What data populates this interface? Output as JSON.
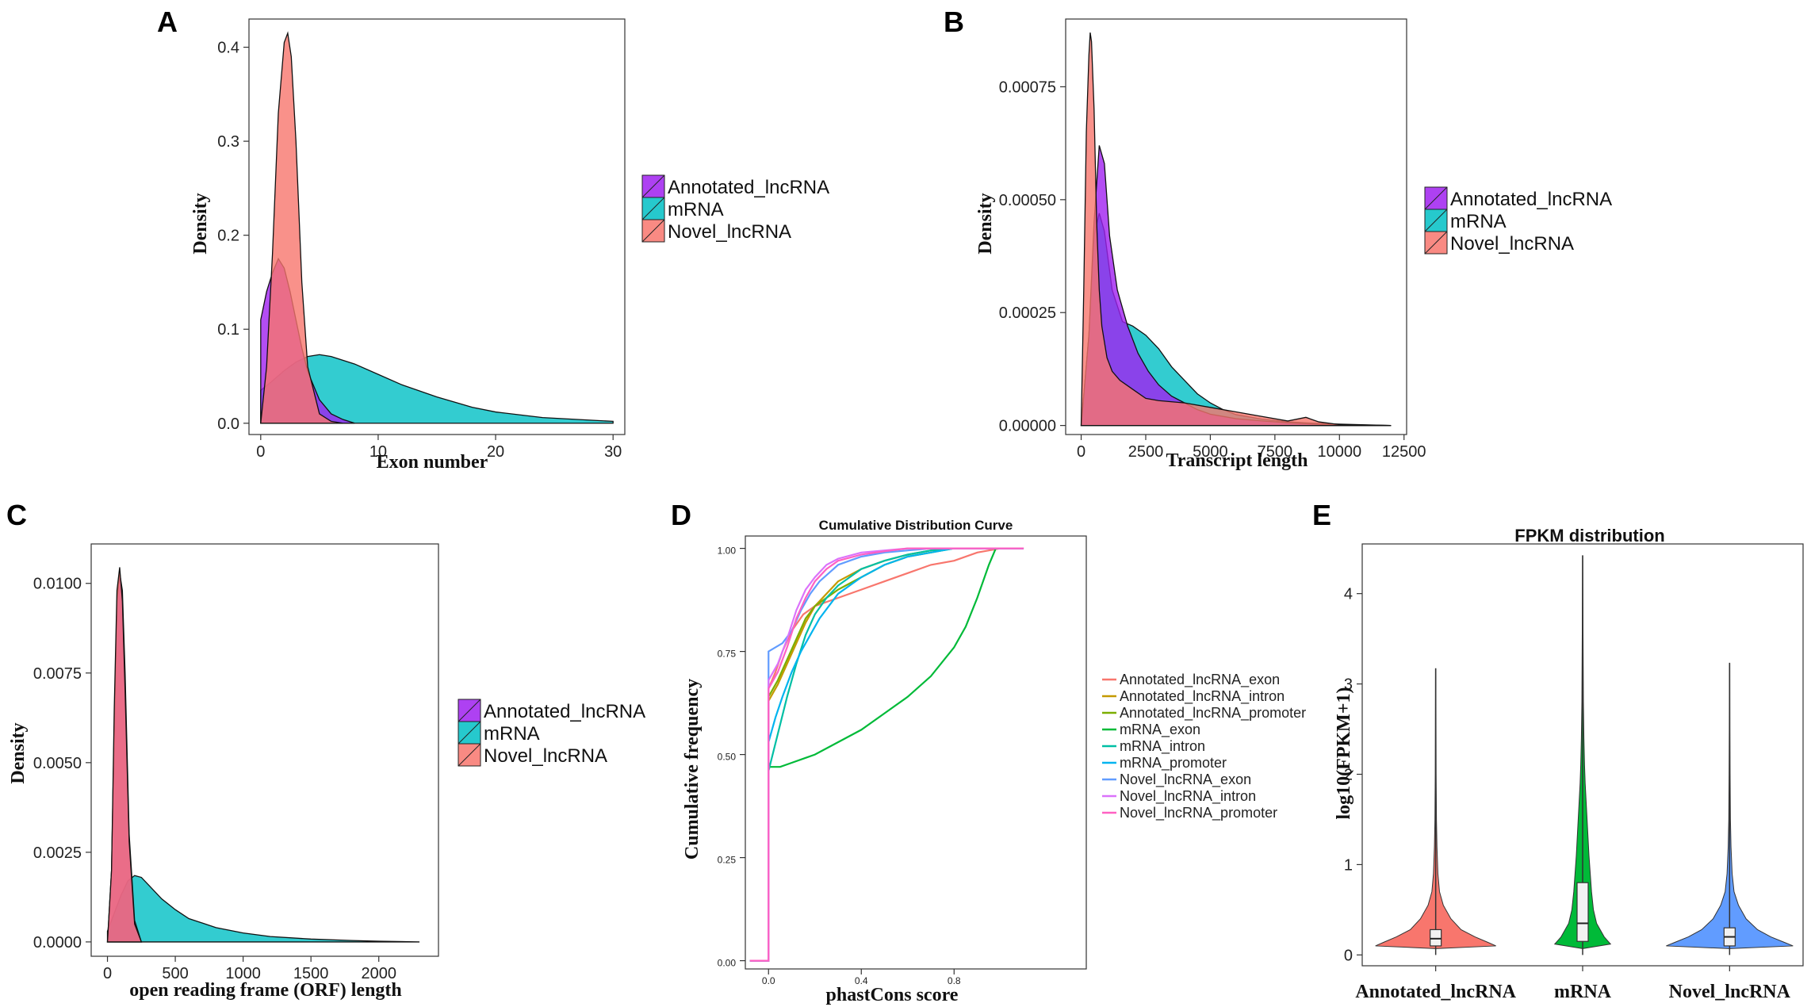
{
  "panels": {
    "A": {
      "label": "A",
      "type": "area",
      "xlabel": "Exon number",
      "ylabel": "Density",
      "xlim": [
        -1,
        31
      ],
      "ylim": [
        -0.012,
        0.43
      ],
      "xticks": [
        0,
        10,
        20,
        30
      ],
      "yticks": [
        0.0,
        0.1,
        0.2,
        0.3,
        0.4
      ],
      "ytick_labels": [
        "0.0",
        "0.1",
        "0.2",
        "0.3",
        "0.4"
      ],
      "legend": [
        "Annotated_lncRNA",
        "mRNA",
        "Novel_lncRNA"
      ],
      "series": [
        {
          "name": "mRNA",
          "color": "#00BFC4",
          "x": [
            0,
            1,
            2,
            3,
            4,
            5,
            6,
            8,
            10,
            12,
            15,
            18,
            20,
            24,
            30
          ],
          "y": [
            0.035,
            0.045,
            0.056,
            0.065,
            0.071,
            0.073,
            0.071,
            0.063,
            0.052,
            0.041,
            0.028,
            0.017,
            0.012,
            0.006,
            0.002
          ]
        },
        {
          "name": "Annotated_lncRNA",
          "color": "#A020F0",
          "x": [
            0,
            0.5,
            1,
            1.5,
            2,
            2.5,
            3,
            3.5,
            4,
            5,
            6,
            7,
            8
          ],
          "y": [
            0.11,
            0.14,
            0.16,
            0.175,
            0.165,
            0.14,
            0.11,
            0.08,
            0.055,
            0.025,
            0.01,
            0.004,
            0.0
          ]
        },
        {
          "name": "Novel_lncRNA",
          "color": "#F8766D",
          "x": [
            0,
            0.5,
            1,
            1.5,
            2,
            2.3,
            2.6,
            3,
            3.5,
            4,
            5,
            6,
            7
          ],
          "y": [
            0.0,
            0.06,
            0.18,
            0.33,
            0.405,
            0.415,
            0.39,
            0.3,
            0.15,
            0.06,
            0.01,
            0.002,
            0.0
          ]
        }
      ]
    },
    "B": {
      "label": "B",
      "type": "area",
      "xlabel": "Transcript length",
      "ylabel": "Density",
      "xlim": [
        -600,
        12600
      ],
      "ylim": [
        -2e-05,
        0.0009
      ],
      "xticks": [
        0,
        2500,
        5000,
        7500,
        10000,
        12500
      ],
      "yticks": [
        0.0,
        0.00025,
        0.0005,
        0.00075
      ],
      "ytick_labels": [
        "0.00000",
        "0.00025",
        "0.00050",
        "0.00075"
      ],
      "legend": [
        "Annotated_lncRNA",
        "mRNA",
        "Novel_lncRNA"
      ],
      "series": [
        {
          "name": "mRNA",
          "color": "#00BFC4",
          "x": [
            0,
            300,
            500,
            700,
            900,
            1200,
            1600,
            2000,
            2500,
            3000,
            3500,
            4000,
            4500,
            5000,
            5500,
            6000,
            7000,
            8000,
            9000,
            10000,
            12000
          ],
          "y": [
            0.0,
            0.0002,
            0.00042,
            0.00047,
            0.00043,
            0.0003,
            0.00023,
            0.00022,
            0.0002,
            0.00017,
            0.00013,
            0.0001,
            7e-05,
            5e-05,
            3.5e-05,
            2.4e-05,
            1.4e-05,
            8e-06,
            5e-06,
            3e-06,
            0.0
          ]
        },
        {
          "name": "Annotated_lncRNA",
          "color": "#A020F0",
          "x": [
            0,
            300,
            500,
            700,
            900,
            1100,
            1400,
            1800,
            2200,
            2600,
            3000,
            3500,
            4000,
            4500,
            5000,
            6000,
            7000,
            8000,
            9000,
            10000,
            12000
          ],
          "y": [
            0.0,
            0.0002,
            0.00045,
            0.00062,
            0.00058,
            0.00042,
            0.0003,
            0.00022,
            0.00016,
            0.00012,
            9e-05,
            6.5e-05,
            5e-05,
            3.5e-05,
            2.5e-05,
            1.5e-05,
            1e-05,
            6e-06,
            3e-06,
            1e-06,
            0.0
          ]
        },
        {
          "name": "Novel_lncRNA",
          "color": "#F8766D",
          "x": [
            0,
            100,
            200,
            300,
            350,
            400,
            500,
            600,
            700,
            800,
            1000,
            1200,
            1500,
            2000,
            2500,
            3000,
            4000,
            5000,
            6000,
            7000,
            8000,
            8700,
            9200,
            10000,
            12000
          ],
          "y": [
            0.0,
            0.0003,
            0.00065,
            0.00082,
            0.00087,
            0.00085,
            0.0007,
            0.00045,
            0.0003,
            0.00022,
            0.00015,
            0.00012,
            0.0001,
            8e-05,
            6e-05,
            5.5e-05,
            5e-05,
            4e-05,
            3e-05,
            2e-05,
            1e-05,
            1.8e-05,
            8e-06,
            2e-06,
            0.0
          ]
        }
      ]
    },
    "C": {
      "label": "C",
      "type": "area",
      "xlabel": "open reading frame (ORF) length",
      "ylabel": "Density",
      "xlim": [
        -120,
        2440
      ],
      "ylim": [
        -0.0004,
        0.0111
      ],
      "xticks": [
        0,
        500,
        1000,
        1500,
        2000
      ],
      "yticks": [
        0.0,
        0.0025,
        0.005,
        0.0075,
        0.01
      ],
      "ytick_labels": [
        "0.0000",
        "0.0025",
        "0.0050",
        "0.0075",
        "0.0100"
      ],
      "legend": [
        "Annotated_lncRNA",
        "mRNA",
        "Novel_lncRNA"
      ],
      "series": [
        {
          "name": "mRNA",
          "color": "#00BFC4",
          "x": [
            0,
            50,
            100,
            150,
            200,
            250,
            300,
            400,
            500,
            600,
            800,
            1000,
            1200,
            1500,
            1800,
            2000,
            2300
          ],
          "y": [
            0.0003,
            0.0008,
            0.0013,
            0.0017,
            0.00185,
            0.0018,
            0.0016,
            0.0012,
            0.0009,
            0.00065,
            0.0004,
            0.00025,
            0.00015,
            8e-05,
            4e-05,
            2e-05,
            0.0
          ]
        },
        {
          "name": "Annotated_lncRNA",
          "color": "#A020F0",
          "x": [
            0,
            30,
            50,
            70,
            90,
            110,
            130,
            160,
            200,
            250
          ],
          "y": [
            0.0,
            0.002,
            0.006,
            0.0095,
            0.0103,
            0.0098,
            0.0075,
            0.003,
            0.0006,
            0.0
          ]
        },
        {
          "name": "Novel_lncRNA",
          "color": "#F8766D",
          "x": [
            0,
            30,
            50,
            70,
            90,
            110,
            130,
            160,
            200,
            250
          ],
          "y": [
            0.0,
            0.002,
            0.0065,
            0.0098,
            0.01045,
            0.0095,
            0.007,
            0.0028,
            0.0005,
            0.0
          ]
        }
      ]
    },
    "D": {
      "label": "D",
      "type": "line",
      "title": "Cumulative Distribution Curve",
      "xlabel": "phastCons score",
      "ylabel": "Cumulative frequency",
      "xlim": [
        -0.1,
        1.37
      ],
      "ylim": [
        -0.02,
        1.03
      ],
      "xticks": [
        0.0,
        0.4,
        0.8
      ],
      "xtick_labels": [
        "0.0",
        "0.4",
        "0.8"
      ],
      "yticks": [
        0.0,
        0.25,
        0.5,
        0.75,
        1.0
      ],
      "ytick_labels": [
        "0.00",
        "0.25",
        "0.50",
        "0.75",
        "1.00"
      ],
      "series": [
        {
          "name": "Annotated_lncRNA_exon",
          "color": "#F8766D",
          "x": [
            -0.08,
            0.0,
            0.0,
            0.03,
            0.06,
            0.1,
            0.15,
            0.2,
            0.3,
            0.4,
            0.5,
            0.6,
            0.7,
            0.8,
            0.9,
            1.0,
            1.1
          ],
          "y": [
            0.0,
            0.0,
            0.66,
            0.7,
            0.75,
            0.8,
            0.84,
            0.86,
            0.88,
            0.9,
            0.92,
            0.94,
            0.96,
            0.97,
            0.99,
            1.0,
            1.0
          ]
        },
        {
          "name": "Annotated_lncRNA_intron",
          "color": "#C49A00",
          "x": [
            -0.08,
            0.0,
            0.0,
            0.04,
            0.08,
            0.12,
            0.16,
            0.2,
            0.3,
            0.4,
            0.5,
            0.6,
            0.7,
            0.8,
            0.9,
            1.0,
            1.1
          ],
          "y": [
            0.0,
            0.0,
            0.63,
            0.67,
            0.72,
            0.77,
            0.82,
            0.86,
            0.92,
            0.95,
            0.97,
            0.985,
            0.995,
            1.0,
            1.0,
            1.0,
            1.0
          ]
        },
        {
          "name": "Annotated_lncRNA_promoter",
          "color": "#7CAE00",
          "x": [
            -0.08,
            0.0,
            0.0,
            0.04,
            0.08,
            0.12,
            0.16,
            0.2,
            0.3,
            0.4,
            0.5,
            0.6,
            0.7,
            0.8,
            0.9,
            1.0,
            1.1
          ],
          "y": [
            0.0,
            0.0,
            0.64,
            0.68,
            0.73,
            0.78,
            0.83,
            0.86,
            0.9,
            0.93,
            0.96,
            0.98,
            0.99,
            1.0,
            1.0,
            1.0,
            1.0
          ]
        },
        {
          "name": "mRNA_exon",
          "color": "#00BA38",
          "x": [
            -0.08,
            0.0,
            0.0,
            0.05,
            0.1,
            0.2,
            0.3,
            0.4,
            0.5,
            0.6,
            0.7,
            0.8,
            0.85,
            0.9,
            0.95,
            0.98,
            1.0,
            1.1
          ],
          "y": [
            0.0,
            0.0,
            0.47,
            0.47,
            0.48,
            0.5,
            0.53,
            0.56,
            0.6,
            0.64,
            0.69,
            0.76,
            0.81,
            0.88,
            0.96,
            1.0,
            1.0,
            1.0
          ]
        },
        {
          "name": "mRNA_intron",
          "color": "#00BFA4",
          "x": [
            -0.08,
            0.0,
            0.0,
            0.04,
            0.08,
            0.12,
            0.16,
            0.2,
            0.25,
            0.3,
            0.4,
            0.5,
            0.6,
            0.7,
            0.8,
            1.0,
            1.1
          ],
          "y": [
            0.0,
            0.0,
            0.46,
            0.55,
            0.64,
            0.72,
            0.79,
            0.84,
            0.88,
            0.91,
            0.95,
            0.97,
            0.985,
            0.995,
            1.0,
            1.0,
            1.0
          ]
        },
        {
          "name": "mRNA_promoter",
          "color": "#00B4EF",
          "x": [
            -0.08,
            0.0,
            0.0,
            0.03,
            0.06,
            0.1,
            0.14,
            0.18,
            0.22,
            0.26,
            0.3,
            0.4,
            0.5,
            0.6,
            0.7,
            0.8,
            1.0,
            1.1
          ],
          "y": [
            0.0,
            0.0,
            0.53,
            0.59,
            0.64,
            0.7,
            0.75,
            0.79,
            0.83,
            0.86,
            0.89,
            0.93,
            0.96,
            0.98,
            0.99,
            1.0,
            1.0,
            1.0
          ]
        },
        {
          "name": "Novel_lncRNA_exon",
          "color": "#619CFF",
          "x": [
            -0.08,
            0.0,
            0.0,
            0.06,
            0.1,
            0.14,
            0.18,
            0.22,
            0.26,
            0.3,
            0.4,
            0.5,
            0.6,
            0.7,
            0.8,
            1.0,
            1.1
          ],
          "y": [
            0.0,
            0.0,
            0.75,
            0.77,
            0.8,
            0.85,
            0.89,
            0.92,
            0.94,
            0.96,
            0.98,
            0.99,
            0.995,
            1.0,
            1.0,
            1.0,
            1.0
          ]
        },
        {
          "name": "Novel_lncRNA_intron",
          "color": "#DB72FB",
          "x": [
            -0.08,
            0.0,
            0.0,
            0.04,
            0.08,
            0.12,
            0.16,
            0.2,
            0.25,
            0.3,
            0.4,
            0.5,
            0.6,
            0.7,
            0.8,
            1.0,
            1.1
          ],
          "y": [
            0.0,
            0.0,
            0.68,
            0.72,
            0.78,
            0.85,
            0.9,
            0.93,
            0.96,
            0.975,
            0.99,
            0.995,
            1.0,
            1.0,
            1.0,
            1.0,
            1.0
          ]
        },
        {
          "name": "Novel_lncRNA_promoter",
          "color": "#FF61C3",
          "x": [
            -0.08,
            0.0,
            0.0,
            0.04,
            0.08,
            0.12,
            0.16,
            0.2,
            0.25,
            0.3,
            0.4,
            0.5,
            0.6,
            0.7,
            0.8,
            1.0,
            1.1
          ],
          "y": [
            0.0,
            0.0,
            0.66,
            0.7,
            0.76,
            0.83,
            0.88,
            0.92,
            0.95,
            0.97,
            0.985,
            0.993,
            1.0,
            1.0,
            1.0,
            1.0,
            1.0
          ]
        }
      ]
    },
    "E": {
      "label": "E",
      "type": "violin",
      "title": "FPKM distribution",
      "ylabel": "log10(FPKM+1)",
      "ylim": [
        -0.12,
        4.55
      ],
      "yticks": [
        0,
        1,
        2,
        3,
        4
      ],
      "categories": [
        "Annotated_lncRNA",
        "mRNA",
        "Novel_lncRNA"
      ],
      "series": [
        {
          "name": "Annotated_lncRNA",
          "color": "#F8766D",
          "max": 3.17,
          "q1": 0.1,
          "median": 0.18,
          "q3": 0.28,
          "whisker_low": 0.0,
          "whisker_high": 1.4,
          "profile_y": [
            0.07,
            0.1,
            0.14,
            0.2,
            0.28,
            0.4,
            0.55,
            0.7,
            0.9,
            1.2,
            1.5,
            2.0,
            2.5,
            3.17
          ],
          "profile_w": [
            0.0,
            0.95,
            0.82,
            0.62,
            0.4,
            0.24,
            0.12,
            0.06,
            0.035,
            0.02,
            0.012,
            0.007,
            0.005,
            0.003
          ]
        },
        {
          "name": "mRNA",
          "color": "#00BA38",
          "max": 4.42,
          "q1": 0.15,
          "median": 0.35,
          "q3": 0.8,
          "whisker_low": 0.0,
          "whisker_high": 1.6,
          "profile_y": [
            0.07,
            0.12,
            0.2,
            0.35,
            0.5,
            0.7,
            0.9,
            1.1,
            1.3,
            1.5,
            1.7,
            1.9,
            2.1,
            2.4,
            2.8,
            3.2,
            3.6,
            4.0,
            4.42
          ],
          "profile_w": [
            0.0,
            0.44,
            0.34,
            0.22,
            0.17,
            0.14,
            0.12,
            0.1,
            0.085,
            0.07,
            0.055,
            0.04,
            0.03,
            0.02,
            0.012,
            0.009,
            0.006,
            0.004,
            0.002
          ]
        },
        {
          "name": "Novel_lncRNA",
          "color": "#619CFF",
          "max": 3.23,
          "q1": 0.1,
          "median": 0.2,
          "q3": 0.3,
          "whisker_low": 0.0,
          "whisker_high": 1.45,
          "profile_y": [
            0.07,
            0.1,
            0.14,
            0.2,
            0.28,
            0.4,
            0.55,
            0.7,
            0.9,
            1.2,
            1.5,
            2.0,
            2.5,
            3.23
          ],
          "profile_w": [
            0.0,
            1.0,
            0.86,
            0.65,
            0.44,
            0.26,
            0.14,
            0.07,
            0.04,
            0.022,
            0.013,
            0.008,
            0.005,
            0.003
          ]
        }
      ]
    }
  }
}
